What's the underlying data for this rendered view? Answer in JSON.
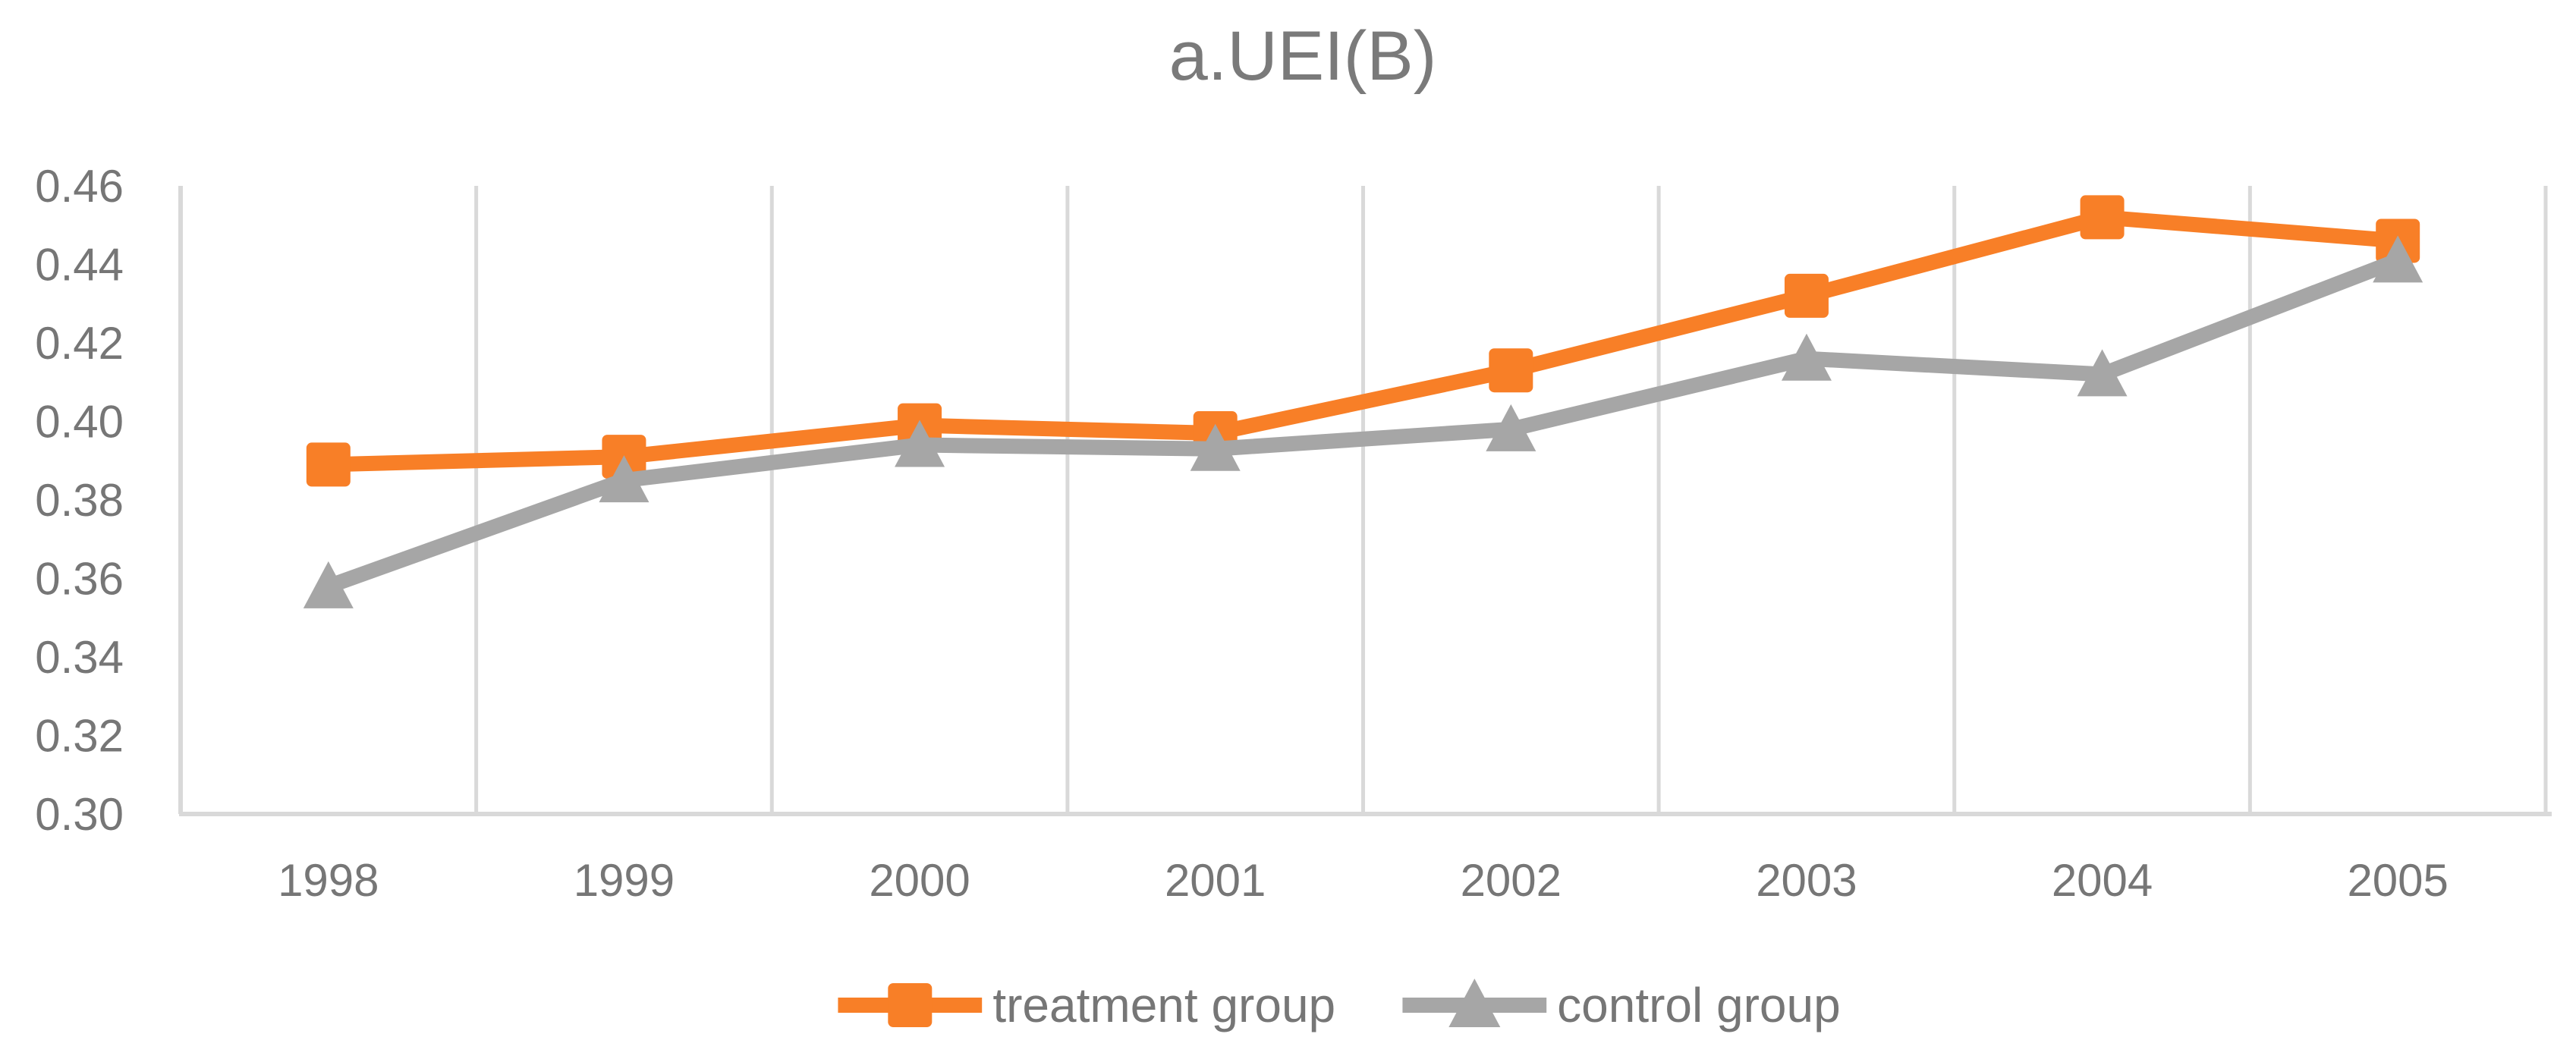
{
  "title": "a.UEI(B)",
  "colors": {
    "treatment": "#F87F27",
    "control": "#A6A6A6",
    "gridline": "#D9D9D9",
    "axis_line": "#D9D9D9",
    "tick_text": "#767676",
    "title_text": "#7A7A7A",
    "legend_text": "#767676",
    "background": "#FFFFFF"
  },
  "legend": {
    "items": [
      {
        "label": "treatment group",
        "marker": "square-marker-icon",
        "color": "#F87F27"
      },
      {
        "label": "control group",
        "marker": "triangle-marker-icon",
        "color": "#A6A6A6"
      }
    ]
  },
  "chart_data": {
    "type": "line",
    "title": "a.UEI(B)",
    "categories": [
      "1998",
      "1999",
      "2000",
      "2001",
      "2002",
      "2003",
      "2004",
      "2005"
    ],
    "series": [
      {
        "name": "treatment group",
        "marker": "square",
        "color": "#F87F27",
        "values": [
          0.389,
          0.391,
          0.399,
          0.397,
          0.413,
          0.432,
          0.452,
          0.446
        ]
      },
      {
        "name": "control group",
        "marker": "triangle",
        "color": "#A6A6A6",
        "values": [
          0.358,
          0.385,
          0.394,
          0.393,
          0.398,
          0.416,
          0.412,
          0.441
        ]
      }
    ],
    "xlabel": "",
    "ylabel": "",
    "ylim": [
      0.3,
      0.46
    ],
    "y_ticks": [
      "0.46",
      "0.44",
      "0.42",
      "0.40",
      "0.38",
      "0.36",
      "0.34",
      "0.32",
      "0.30"
    ],
    "y_tick_step": 0.02,
    "grid": "vertical-only",
    "legend_position": "bottom"
  }
}
